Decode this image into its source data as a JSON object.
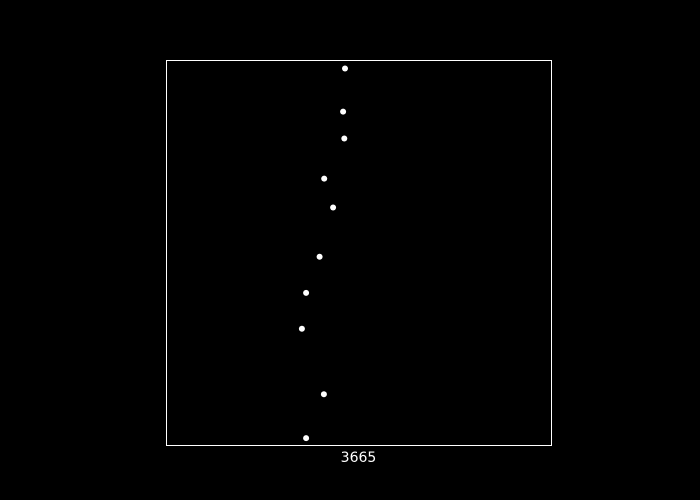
{
  "chart_data": {
    "type": "scatter",
    "title": "",
    "xlabel": "3665",
    "ylabel": "",
    "grid": false,
    "legend": "none",
    "x_ticks": [],
    "y_ticks": [],
    "xlim": [
      0,
      1
    ],
    "ylim": [
      0,
      1
    ],
    "x": [
      0.465,
      0.46,
      0.463,
      0.411,
      0.434,
      0.399,
      0.364,
      0.353,
      0.41,
      0.364
    ],
    "y": [
      0.978,
      0.866,
      0.796,
      0.692,
      0.617,
      0.489,
      0.395,
      0.302,
      0.132,
      0.018
    ],
    "colors": {
      "background": "#000000",
      "frame": "#ffffff",
      "marker": "#ffffff",
      "text": "#ffffff"
    }
  }
}
